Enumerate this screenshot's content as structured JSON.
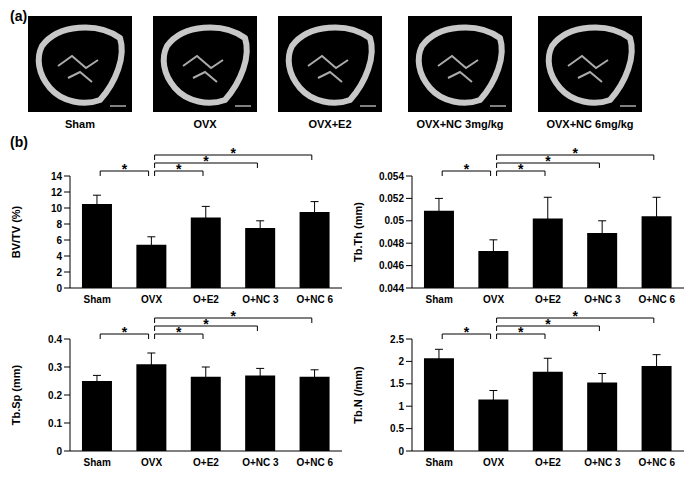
{
  "panel_labels": [
    "(a)",
    "(b)"
  ],
  "images": {
    "labels": [
      "Sham",
      "OVX",
      "OVX+E2",
      "OVX+NC 3mg/kg",
      "OVX+NC 6mg/kg"
    ]
  },
  "chart_data": [
    {
      "type": "bar",
      "categories": [
        "Sham",
        "OVX",
        "O+E2",
        "O+NC 3",
        "O+NC 6"
      ],
      "values": [
        10.5,
        5.4,
        8.8,
        7.5,
        9.5
      ],
      "errors": [
        1.1,
        1.0,
        1.4,
        0.9,
        1.3
      ],
      "ylabel": "BV/TV (%)",
      "ylim": [
        0,
        14
      ],
      "yticks": [
        0,
        2,
        4,
        6,
        8,
        10,
        12,
        14
      ],
      "color": "#000000",
      "significance": [
        {
          "groups": [
            "Sham",
            "OVX"
          ],
          "label": "*"
        },
        {
          "groups": [
            "OVX",
            "O+E2"
          ],
          "label": "*"
        },
        {
          "groups": [
            "OVX",
            "O+NC 3"
          ],
          "label": "*"
        },
        {
          "groups": [
            "OVX",
            "O+NC 6"
          ],
          "label": "*"
        }
      ]
    },
    {
      "type": "bar",
      "categories": [
        "Sham",
        "OVX",
        "O+E2",
        "O+NC 3",
        "O+NC 6"
      ],
      "values": [
        0.0509,
        0.0473,
        0.0502,
        0.0489,
        0.0504
      ],
      "errors": [
        0.0011,
        0.001,
        0.0019,
        0.0011,
        0.0017
      ],
      "ylabel": "Tb.Th (mm)",
      "ylim": [
        0.044,
        0.054
      ],
      "yticks": [
        0.044,
        0.046,
        0.048,
        0.05,
        0.052,
        0.054
      ],
      "color": "#000000",
      "significance": [
        {
          "groups": [
            "Sham",
            "OVX"
          ],
          "label": "*"
        },
        {
          "groups": [
            "OVX",
            "O+E2"
          ],
          "label": "*"
        },
        {
          "groups": [
            "OVX",
            "O+NC 3"
          ],
          "label": "*"
        },
        {
          "groups": [
            "OVX",
            "O+NC 6"
          ],
          "label": "*"
        }
      ]
    },
    {
      "type": "bar",
      "categories": [
        "Sham",
        "OVX",
        "O+E2",
        "O+NC 3",
        "O+NC 6"
      ],
      "values": [
        0.25,
        0.31,
        0.265,
        0.27,
        0.265
      ],
      "errors": [
        0.02,
        0.04,
        0.035,
        0.025,
        0.025
      ],
      "ylabel": "Tb.Sp (mm)",
      "ylim": [
        0,
        0.4
      ],
      "yticks": [
        0,
        0.1,
        0.2,
        0.3,
        0.4
      ],
      "color": "#000000",
      "significance": [
        {
          "groups": [
            "Sham",
            "OVX"
          ],
          "label": "*"
        },
        {
          "groups": [
            "OVX",
            "O+E2"
          ],
          "label": "*"
        },
        {
          "groups": [
            "OVX",
            "O+NC 3"
          ],
          "label": "*"
        },
        {
          "groups": [
            "OVX",
            "O+NC 6"
          ],
          "label": "*"
        }
      ]
    },
    {
      "type": "bar",
      "categories": [
        "Sham",
        "OVX",
        "O+E2",
        "O+NC 3",
        "O+NC 6"
      ],
      "values": [
        2.07,
        1.15,
        1.77,
        1.53,
        1.9
      ],
      "errors": [
        0.2,
        0.2,
        0.3,
        0.2,
        0.25
      ],
      "ylabel": "Tb.N (/mm)",
      "ylim": [
        0,
        2.5
      ],
      "yticks": [
        0,
        0.5,
        1,
        1.5,
        2,
        2.5
      ],
      "color": "#000000",
      "significance": [
        {
          "groups": [
            "Sham",
            "OVX"
          ],
          "label": "*"
        },
        {
          "groups": [
            "OVX",
            "O+E2"
          ],
          "label": "*"
        },
        {
          "groups": [
            "OVX",
            "O+NC 3"
          ],
          "label": "*"
        },
        {
          "groups": [
            "OVX",
            "O+NC 6"
          ],
          "label": "*"
        }
      ]
    }
  ]
}
